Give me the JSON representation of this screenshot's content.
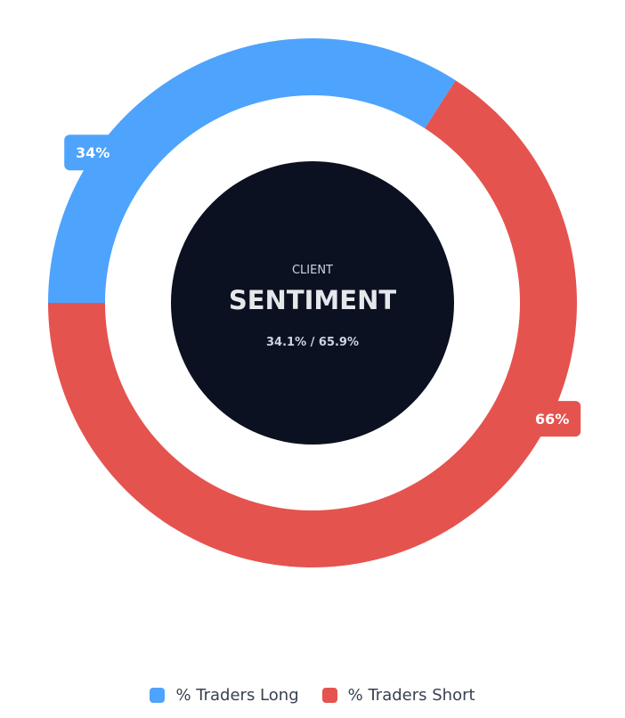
{
  "chart_data": {
    "type": "pie",
    "variant": "doughnut",
    "categories": [
      "% Traders Long",
      "% Traders Short"
    ],
    "values": [
      34.1,
      65.9
    ],
    "data_labels": [
      "34%",
      "66%"
    ],
    "colors": [
      "#4ea3fd",
      "#e5534f"
    ],
    "legend_position": "bottom",
    "center": {
      "subtitle": "CLIENT",
      "title": "SENTIMENT",
      "detail": "34.1% / 65.9%",
      "background": "#0b1120"
    }
  }
}
